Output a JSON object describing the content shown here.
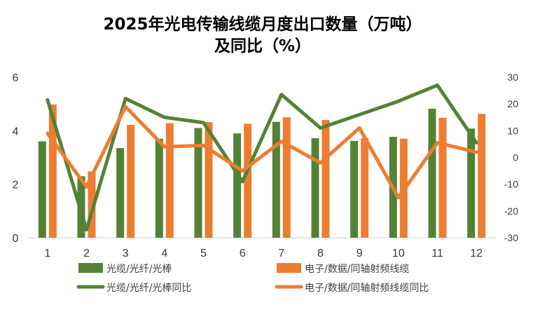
{
  "chart_data": {
    "type": "bar+line",
    "title_line1": "2025年光电传输线缆月度出口数量（万吨）",
    "title_line2": "及同比（%）",
    "categories": [
      "1",
      "2",
      "3",
      "4",
      "5",
      "6",
      "7",
      "8",
      "9",
      "10",
      "11",
      "12"
    ],
    "left_axis": {
      "ylim": [
        0,
        6
      ],
      "ticks": [
        "0",
        "2",
        "4",
        "6"
      ]
    },
    "right_axis": {
      "ylim": [
        -30,
        30
      ],
      "ticks": [
        "-30",
        "-20",
        "-10",
        "0",
        "10",
        "20",
        "30"
      ]
    },
    "series": [
      {
        "name": "光缆/光纤/光棒",
        "type": "bar",
        "axis": "left",
        "color": "#548235",
        "values": [
          3.6,
          2.3,
          3.35,
          3.7,
          4.1,
          3.9,
          4.33,
          3.72,
          3.62,
          3.77,
          4.82,
          4.08
        ]
      },
      {
        "name": "电子/数据/同轴射频线缆",
        "type": "bar",
        "axis": "left",
        "color": "#ED7D31",
        "values": [
          4.98,
          2.48,
          4.22,
          4.28,
          4.32,
          4.26,
          4.5,
          4.4,
          3.72,
          3.7,
          4.48,
          4.63
        ]
      },
      {
        "name": "光缆/光纤/光棒同比",
        "type": "line",
        "axis": "right",
        "color": "#548235",
        "values": [
          21.5,
          -27,
          22,
          15,
          13,
          -9,
          23.5,
          11,
          16,
          21,
          27,
          5.5
        ]
      },
      {
        "name": "电子/数据/同轴射频线缆同比",
        "type": "line",
        "axis": "right",
        "color": "#ED7D31",
        "values": [
          9,
          -11,
          19,
          4,
          4.5,
          -5,
          6,
          -2,
          11,
          -15,
          5.5,
          2
        ]
      }
    ]
  }
}
